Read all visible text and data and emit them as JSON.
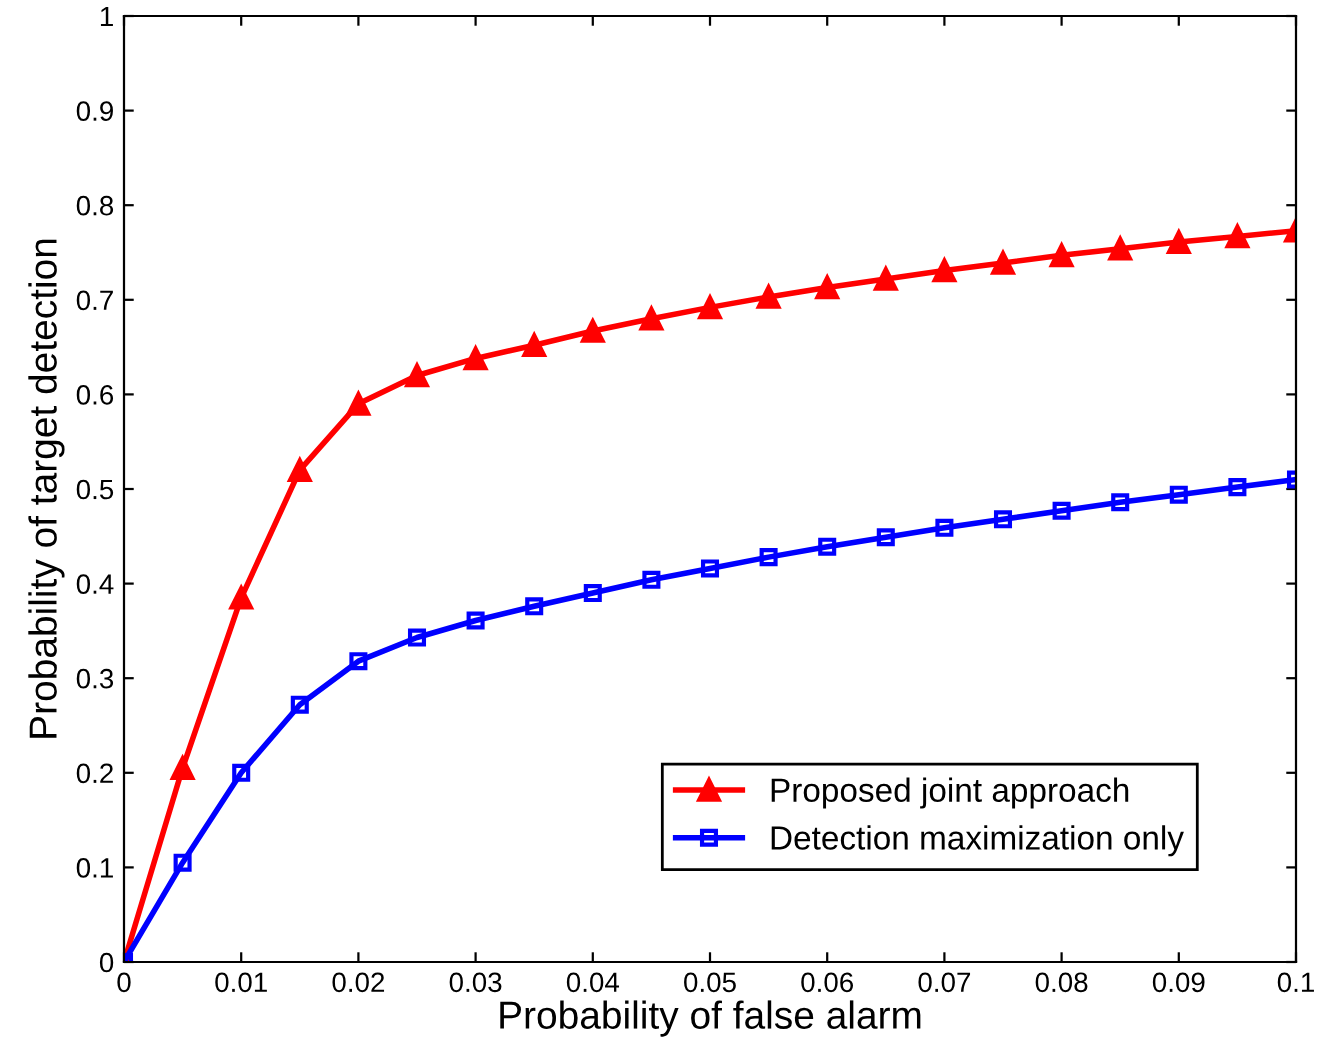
{
  "chart_data": {
    "type": "line",
    "xlabel": "Probability of false alarm",
    "ylabel": "Probability of target detection",
    "x": [
      0,
      0.005,
      0.01,
      0.015,
      0.02,
      0.025,
      0.03,
      0.035,
      0.04,
      0.045,
      0.05,
      0.055,
      0.06,
      0.065,
      0.07,
      0.075,
      0.08,
      0.085,
      0.09,
      0.095,
      0.1
    ],
    "series": [
      {
        "name": "Proposed joint approach",
        "color": "#ff0000",
        "marker": "triangle",
        "values": [
          0,
          0.205,
          0.385,
          0.52,
          0.59,
          0.62,
          0.638,
          0.652,
          0.667,
          0.68,
          0.692,
          0.703,
          0.713,
          0.722,
          0.731,
          0.739,
          0.747,
          0.754,
          0.761,
          0.767,
          0.773
        ]
      },
      {
        "name": "Detection maximization only",
        "color": "#0000ff",
        "marker": "square",
        "values": [
          0,
          0.105,
          0.2,
          0.272,
          0.318,
          0.343,
          0.361,
          0.376,
          0.39,
          0.404,
          0.416,
          0.428,
          0.439,
          0.449,
          0.459,
          0.468,
          0.477,
          0.486,
          0.494,
          0.502,
          0.51
        ]
      }
    ],
    "xlim": [
      0,
      0.1
    ],
    "xticks": [
      0,
      0.01,
      0.02,
      0.03,
      0.04,
      0.05,
      0.06,
      0.07,
      0.08,
      0.09,
      0.1
    ],
    "ylim": [
      0,
      1
    ],
    "yticks": [
      0,
      0.1,
      0.2,
      0.3,
      0.4,
      0.5,
      0.6,
      0.7,
      0.8,
      0.9,
      1
    ],
    "grid": false,
    "legend": "bottom right",
    "line_style": "solid"
  }
}
